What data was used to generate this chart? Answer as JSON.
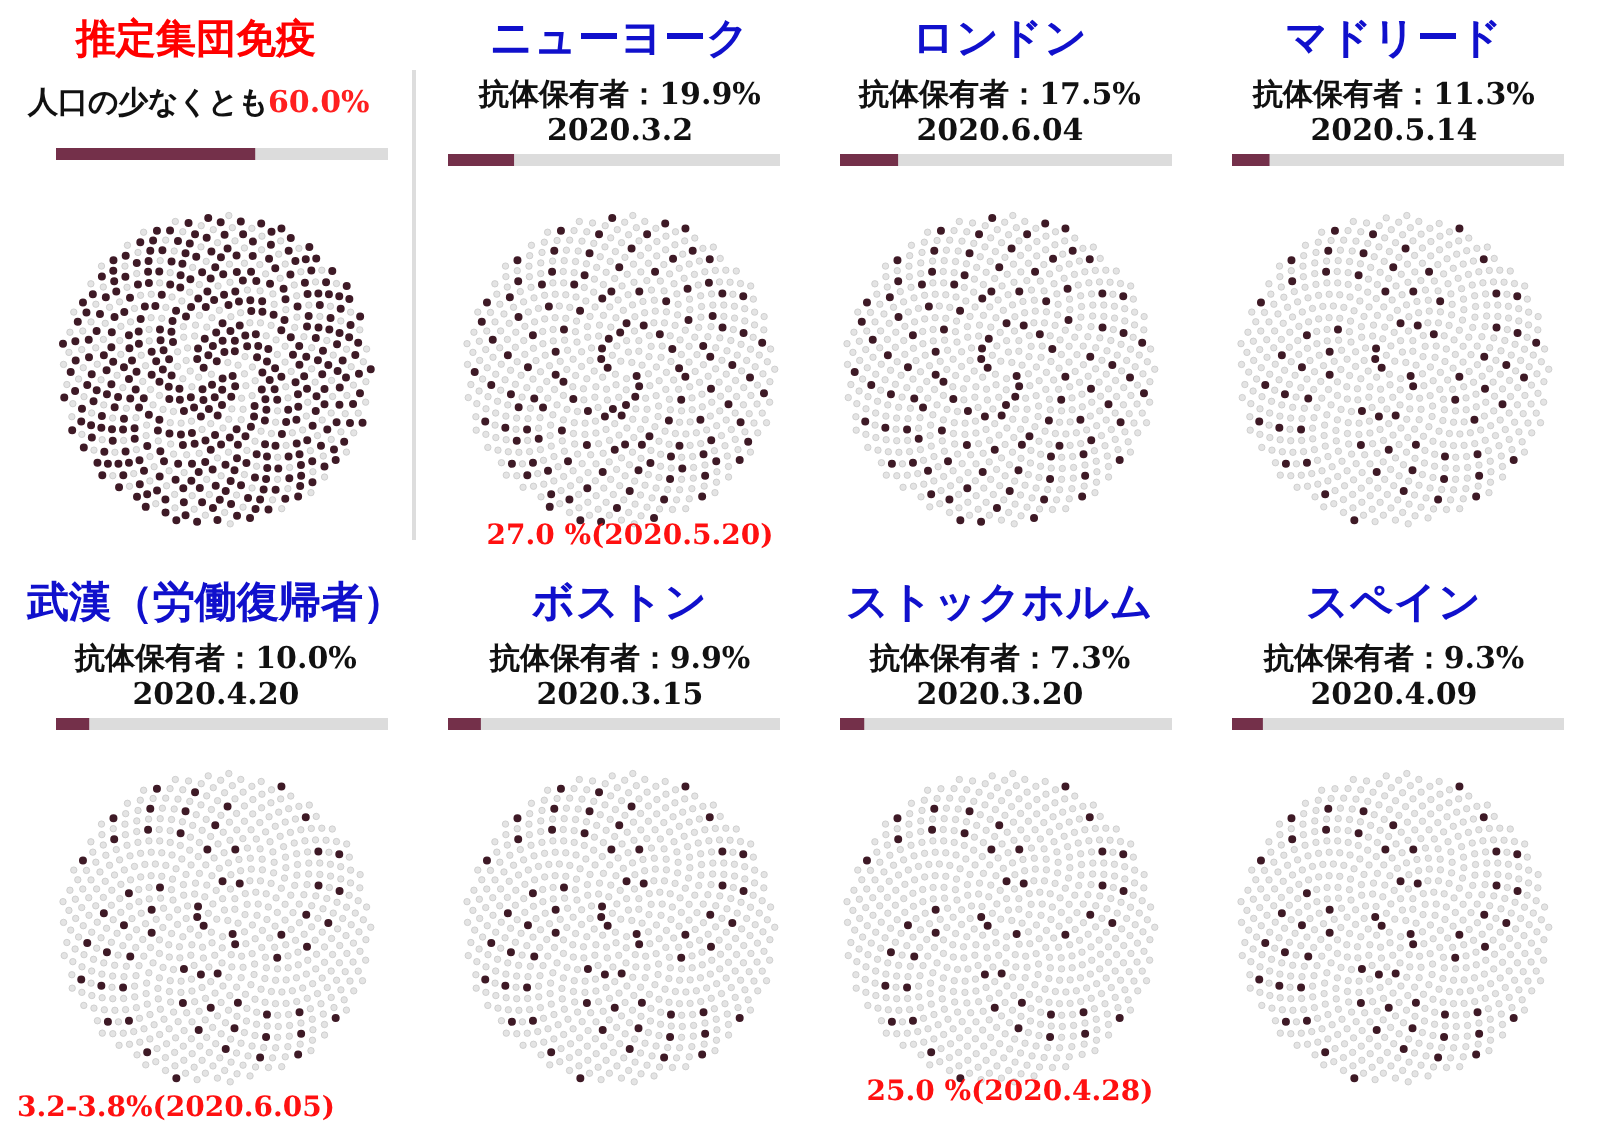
{
  "chart_data": [
    {
      "type": "other",
      "title": "推定集団免疫",
      "subtitle": "人口の少なくとも",
      "categories": [
        null
      ],
      "values": [
        60.0
      ],
      "value_labels": [
        "60.0%"
      ],
      "color": "#74304a"
    },
    {
      "type": "other",
      "title": "ニューヨーク",
      "subtitle": "2020.3.2",
      "categories": [
        null
      ],
      "values": [
        19.9
      ],
      "value_labels": [
        "抗体保有者：19.9%"
      ],
      "color": "#74304a",
      "annotations": [
        "27.0 %(2020.5.20)"
      ]
    },
    {
      "type": "other",
      "title": "ロンドン",
      "subtitle": "2020.6.04",
      "categories": [
        null
      ],
      "values": [
        17.5
      ],
      "value_labels": [
        "抗体保有者：17.5%"
      ],
      "color": "#74304a"
    },
    {
      "type": "other",
      "title": "マドリード",
      "subtitle": "2020.5.14",
      "categories": [
        null
      ],
      "values": [
        11.3
      ],
      "value_labels": [
        "抗体保有者：11.3%"
      ],
      "color": "#74304a"
    },
    {
      "type": "other",
      "title": "武漢（労働復帰者）",
      "subtitle": "2020.4.20",
      "categories": [
        null
      ],
      "values": [
        10.0
      ],
      "value_labels": [
        "抗体保有者：10.0%"
      ],
      "color": "#74304a",
      "annotations": [
        "3.2-3.8%(2020.6.05)"
      ]
    },
    {
      "type": "other",
      "title": "ボストン",
      "subtitle": "2020.3.15",
      "categories": [
        null
      ],
      "values": [
        9.9
      ],
      "value_labels": [
        "抗体保有者：9.9%"
      ],
      "color": "#74304a"
    },
    {
      "type": "other",
      "title": "ストックホルム",
      "subtitle": "2020.3.20",
      "categories": [
        null
      ],
      "values": [
        7.3
      ],
      "value_labels": [
        "抗体保有者：7.3%"
      ],
      "color": "#74304a",
      "annotations": [
        "25.0 %(2020.4.28)"
      ]
    },
    {
      "type": "other",
      "title": "スペイン",
      "subtitle": "2020.4.09",
      "categories": [
        null
      ],
      "values": [
        9.3
      ],
      "value_labels": [
        "抗体保有者：9.3%"
      ],
      "color": "#74304a"
    }
  ]
}
